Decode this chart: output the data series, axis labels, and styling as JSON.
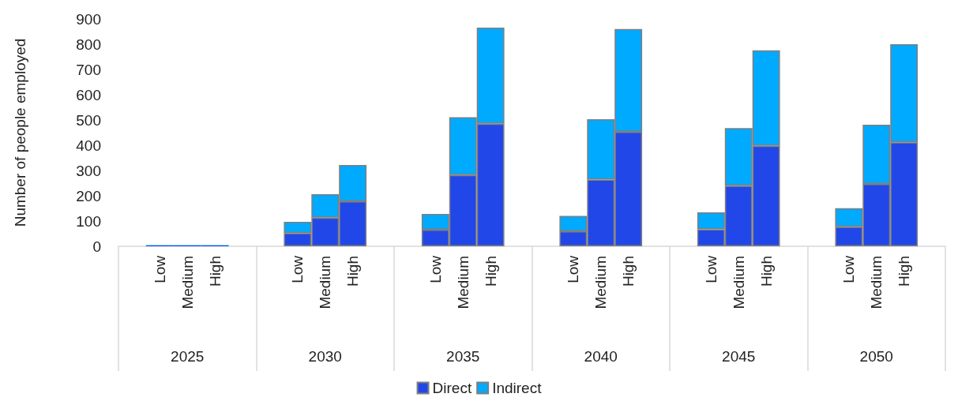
{
  "chart_data": {
    "type": "bar",
    "stacked": true,
    "ylabel": "Number of people employed",
    "categories": [
      null,
      "Low",
      "Medium",
      "High",
      null,
      null,
      "Low",
      "Medium",
      "High",
      null,
      null,
      "Low",
      "Medium",
      "High",
      null,
      null,
      "Low",
      "Medium",
      "High",
      null,
      null,
      "Low",
      "Medium",
      "High",
      null,
      null,
      "Low",
      "Medium",
      "High",
      null
    ],
    "annotations": [
      "2025",
      "2030",
      "2035",
      "2040",
      "2045",
      "2050"
    ],
    "series": [
      {
        "name": "Direct",
        "color": "#2247e8",
        "values": [
          null,
          3,
          3,
          3,
          null,
          null,
          52,
          113,
          178,
          null,
          null,
          66,
          282,
          485,
          null,
          null,
          59,
          264,
          453,
          null,
          null,
          67,
          240,
          398,
          null,
          null,
          77,
          247,
          412,
          null
        ]
      },
      {
        "name": "Indirect",
        "color": "#00aaff",
        "values": [
          null,
          2,
          2,
          2,
          null,
          null,
          45,
          93,
          144,
          null,
          null,
          62,
          229,
          381,
          null,
          null,
          61,
          239,
          407,
          null,
          null,
          67,
          228,
          378,
          null,
          null,
          74,
          234,
          388,
          null
        ]
      }
    ],
    "ylim": [
      0,
      900
    ],
    "yticks": [
      0,
      100,
      200,
      300,
      400,
      500,
      600,
      700,
      800,
      900
    ],
    "grid": false,
    "legend": "bottom"
  }
}
